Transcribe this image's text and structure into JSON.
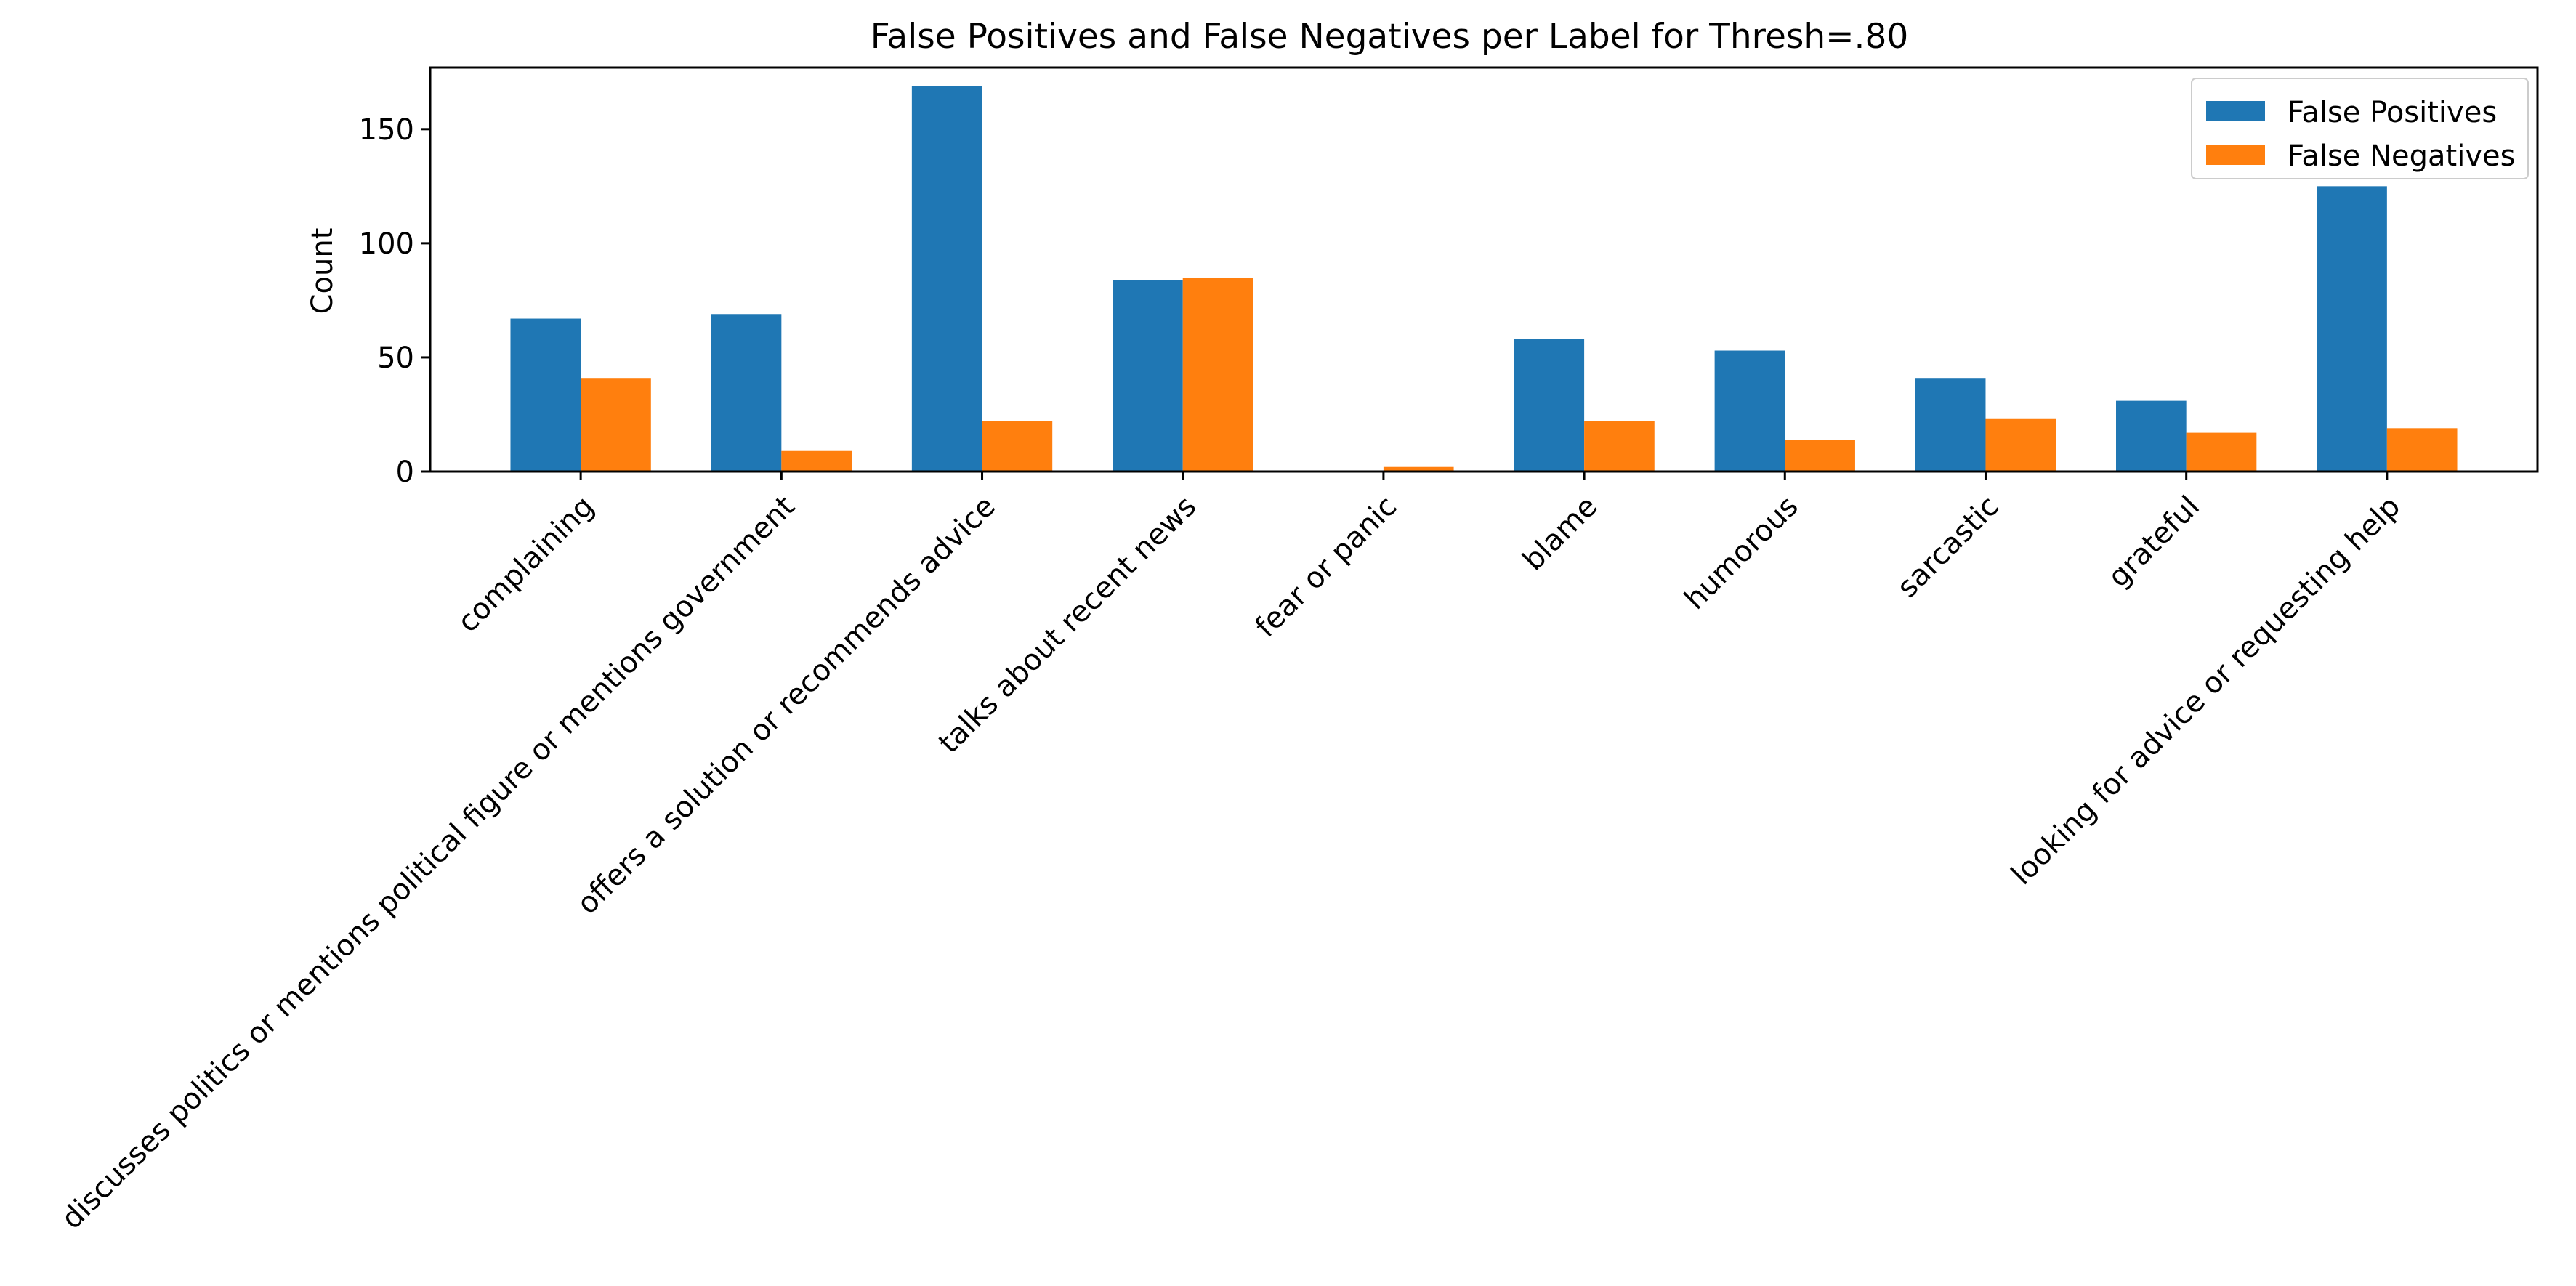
{
  "chart_data": {
    "type": "bar",
    "title": "False Positives and False Negatives per Label for Thresh=.80",
    "xlabel": "",
    "ylabel": "Count",
    "categories": [
      "complaining",
      "discusses politics or mentions political figure or mentions government",
      "offers a solution or recommends advice",
      "talks about recent news",
      "fear or panic",
      "blame",
      "humorous",
      "sarcastic",
      "grateful",
      "looking for advice or requesting help"
    ],
    "series": [
      {
        "name": "False Positives",
        "color": "#1f77b4",
        "values": [
          67,
          69,
          169,
          84,
          0,
          58,
          53,
          41,
          31,
          125
        ]
      },
      {
        "name": "False Negatives",
        "color": "#ff7f0e",
        "values": [
          41,
          9,
          22,
          85,
          2,
          22,
          14,
          23,
          17,
          19
        ]
      }
    ],
    "ylim": [
      0,
      177
    ],
    "yticks": [
      0,
      50,
      100,
      150
    ],
    "grid": false,
    "legend_position": "top-right"
  }
}
